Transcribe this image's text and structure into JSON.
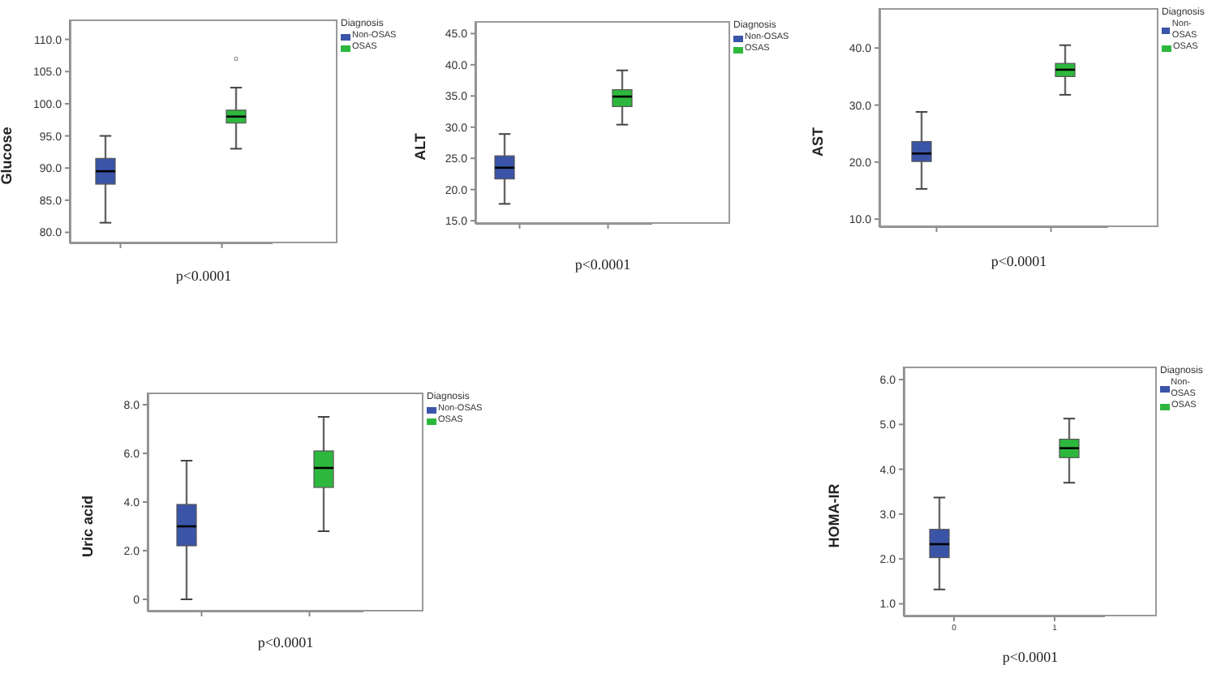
{
  "chart_data": [
    {
      "type": "box",
      "ylabel": "Glucose",
      "legend_title": "Diagnosis",
      "legend": "top right",
      "categories": [
        null,
        null
      ],
      "ylim": [
        78.3,
        113.1
      ],
      "yticks": [
        {
          "value": 80,
          "label": "80.0"
        },
        {
          "value": 85,
          "label": "85.0"
        },
        {
          "value": 90,
          "label": "90.0"
        },
        {
          "value": 95,
          "label": "95.0"
        },
        {
          "value": 100,
          "label": "100.0"
        },
        {
          "value": 105,
          "label": "105.0"
        },
        {
          "value": 110,
          "label": "110.0"
        }
      ],
      "annotations": [
        "p<0.0001"
      ],
      "series": [
        {
          "name": "Non-OSAS",
          "color": "#3a54a8",
          "boxes": [
            {
              "low": 81.5,
              "q1": 87.5,
              "median": 89.5,
              "q3": 91.5,
              "high": 95
            },
            null
          ]
        },
        {
          "name": "OSAS",
          "color": "#2db83d",
          "boxes": [
            null,
            {
              "low": 93,
              "q1": 97,
              "median": 98,
              "q3": 99,
              "high": 102.5,
              "outliers": [
                107
              ]
            }
          ]
        }
      ]
    },
    {
      "type": "box",
      "ylabel": "ALT",
      "legend_title": "Diagnosis",
      "legend": "top right",
      "categories": [
        null,
        null
      ],
      "ylim": [
        14.5,
        47
      ],
      "yticks": [
        {
          "value": 15,
          "label": "15.0"
        },
        {
          "value": 20,
          "label": "20.0"
        },
        {
          "value": 25,
          "label": "25.0"
        },
        {
          "value": 30,
          "label": "30.0"
        },
        {
          "value": 35,
          "label": "35.0"
        },
        {
          "value": 40,
          "label": "40.0"
        },
        {
          "value": 45,
          "label": "45.0"
        }
      ],
      "annotations": [
        "p<0.0001"
      ],
      "series": [
        {
          "name": "Non-OSAS",
          "color": "#3a54a8",
          "boxes": [
            {
              "low": 17.7,
              "q1": 21.7,
              "median": 23.5,
              "q3": 25.4,
              "high": 28.9
            },
            null
          ]
        },
        {
          "name": "OSAS",
          "color": "#2db83d",
          "boxes": [
            null,
            {
              "low": 30.4,
              "q1": 33.3,
              "median": 34.9,
              "q3": 36,
              "high": 39.1
            }
          ]
        }
      ]
    },
    {
      "type": "box",
      "ylabel": "AST",
      "legend_title": "Diagnosis",
      "legend": "top right",
      "categories": [
        null,
        null
      ],
      "ylim": [
        8.6,
        47
      ],
      "yticks": [
        {
          "value": 10,
          "label": "10.0"
        },
        {
          "value": 20,
          "label": "20.0"
        },
        {
          "value": 30,
          "label": "30.0"
        },
        {
          "value": 40,
          "label": "40.0"
        }
      ],
      "annotations": [
        "p<0.0001"
      ],
      "series": [
        {
          "name": "Non-OSAS",
          "color": "#3a54a8",
          "boxes": [
            {
              "low": 15.3,
              "q1": 20.1,
              "median": 21.5,
              "q3": 23.6,
              "high": 28.8
            },
            null
          ]
        },
        {
          "name": "OSAS",
          "color": "#2db83d",
          "boxes": [
            null,
            {
              "low": 31.8,
              "q1": 35,
              "median": 36.2,
              "q3": 37.3,
              "high": 40.5
            }
          ]
        }
      ]
    },
    {
      "type": "box",
      "ylabel": "Uric acid",
      "legend_title": "Diagnosis",
      "legend": "top right",
      "categories": [
        null,
        null
      ],
      "ylim": [
        -0.5,
        8.5
      ],
      "yticks": [
        0,
        {
          "value": 2,
          "label": "2.0"
        },
        {
          "value": 4,
          "label": "4.0"
        },
        {
          "value": 6,
          "label": "6.0"
        },
        {
          "value": 8,
          "label": "8.0"
        }
      ],
      "annotations": [
        "p<0.0001"
      ],
      "series": [
        {
          "name": "Non-OSAS",
          "color": "#3a54a8",
          "boxes": [
            {
              "low": 0,
              "q1": 2.2,
              "median": 3,
              "q3": 3.9,
              "high": 5.7
            },
            null
          ]
        },
        {
          "name": "OSAS",
          "color": "#2db83d",
          "boxes": [
            null,
            {
              "low": 2.8,
              "q1": 4.6,
              "median": 5.4,
              "q3": 6.1,
              "high": 7.5
            }
          ]
        }
      ]
    },
    {
      "type": "box",
      "ylabel": "HOMA-IR",
      "legend_title": "Diagnosis",
      "legend": "top right",
      "categories": [
        "0",
        "1"
      ],
      "ylim": [
        0.72,
        6.29
      ],
      "yticks": [
        {
          "value": 1,
          "label": "1.0"
        },
        {
          "value": 2,
          "label": "2.0"
        },
        {
          "value": 3,
          "label": "3.0"
        },
        {
          "value": 4,
          "label": "4.0"
        },
        {
          "value": 5,
          "label": "5.0"
        },
        {
          "value": 6,
          "label": "6.0"
        }
      ],
      "annotations": [
        "p<0.0001"
      ],
      "series": [
        {
          "name": "Non-OSAS",
          "color": "#3a54a8",
          "boxes": [
            {
              "low": 1.32,
              "q1": 2.03,
              "median": 2.33,
              "q3": 2.66,
              "high": 3.37
            },
            null
          ]
        },
        {
          "name": "OSAS",
          "color": "#2db83d",
          "boxes": [
            null,
            {
              "low": 3.7,
              "q1": 4.26,
              "median": 4.47,
              "q3": 4.67,
              "high": 5.13
            }
          ]
        }
      ]
    }
  ]
}
